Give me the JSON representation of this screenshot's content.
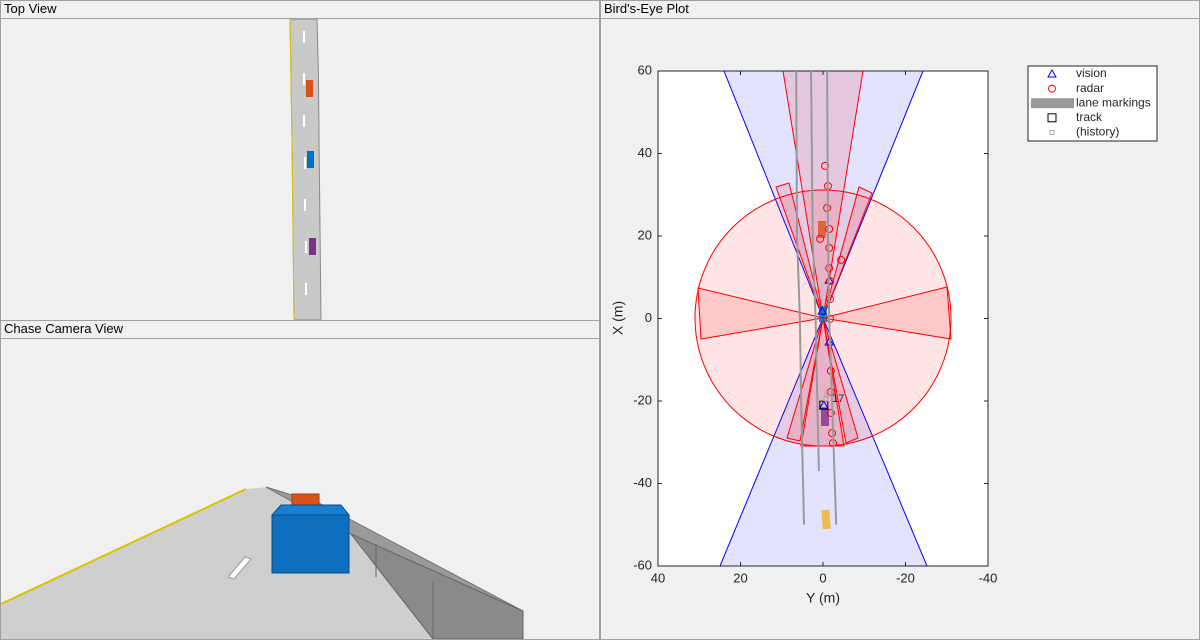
{
  "panels": {
    "top_view": "Top View",
    "chase_camera": "Chase Camera View",
    "birds_eye": "Bird's-Eye Plot"
  },
  "chart_data": {
    "type": "scatter",
    "xlabel": "Y (m)",
    "ylabel": "X (m)",
    "xlim": [
      40,
      -40
    ],
    "ylim": [
      -60,
      60
    ],
    "xticks": [
      40,
      20,
      0,
      -20,
      -40
    ],
    "yticks": [
      -60,
      -40,
      -20,
      0,
      20,
      40,
      60
    ],
    "series": [
      {
        "name": "vision",
        "color": "#0000ff",
        "marker": "triangle",
        "x": [
          -1.5,
          -1.5,
          -0.2,
          0.2
        ],
        "values": [
          9.3,
          -5.7,
          -21.0,
          1.8
        ]
      },
      {
        "name": "radar",
        "color": "#ff0000",
        "marker": "circle",
        "x": [
          -0.5,
          -1.2,
          -1.0,
          -1.5,
          0.7,
          -1.5,
          -1.5,
          -4.4,
          -1.7,
          -1.7,
          -1.7,
          -1.9,
          -1.9,
          -1.9,
          -2.2,
          -2.4
        ],
        "values": [
          37.0,
          32.1,
          26.8,
          21.7,
          19.3,
          17.1,
          12.2,
          14.2,
          9.1,
          4.7,
          -0.1,
          -12.7,
          -17.8,
          -22.9,
          -27.8,
          -30.2
        ]
      },
      {
        "name": "lane markings",
        "color": "#999999",
        "marker": "line",
        "x": [
          6.5,
          6.3,
          5.6,
          5.3,
          4.6,
          null,
          2.9,
          2.5,
          1.8,
          1.0,
          null,
          -1.0,
          -1.2,
          -1.5,
          -2.2,
          -3.2
        ],
        "values": [
          60,
          20,
          0,
          -20,
          -50,
          null,
          60,
          20,
          0,
          -37,
          null,
          60,
          20,
          0,
          -20,
          -50
        ]
      },
      {
        "name": "track",
        "color": "#000000",
        "marker": "square",
        "x": [
          -0.2
        ],
        "values": [
          -21.0
        ]
      },
      {
        "name": "(history)",
        "color": "#aaaaaa",
        "marker": "square-small",
        "x": [
          -0.7,
          -1.0
        ],
        "values": [
          -19.5,
          -18.3
        ]
      }
    ],
    "annotations": [
      {
        "text": "17",
        "x": -2.2,
        "y": -19.5
      }
    ]
  }
}
